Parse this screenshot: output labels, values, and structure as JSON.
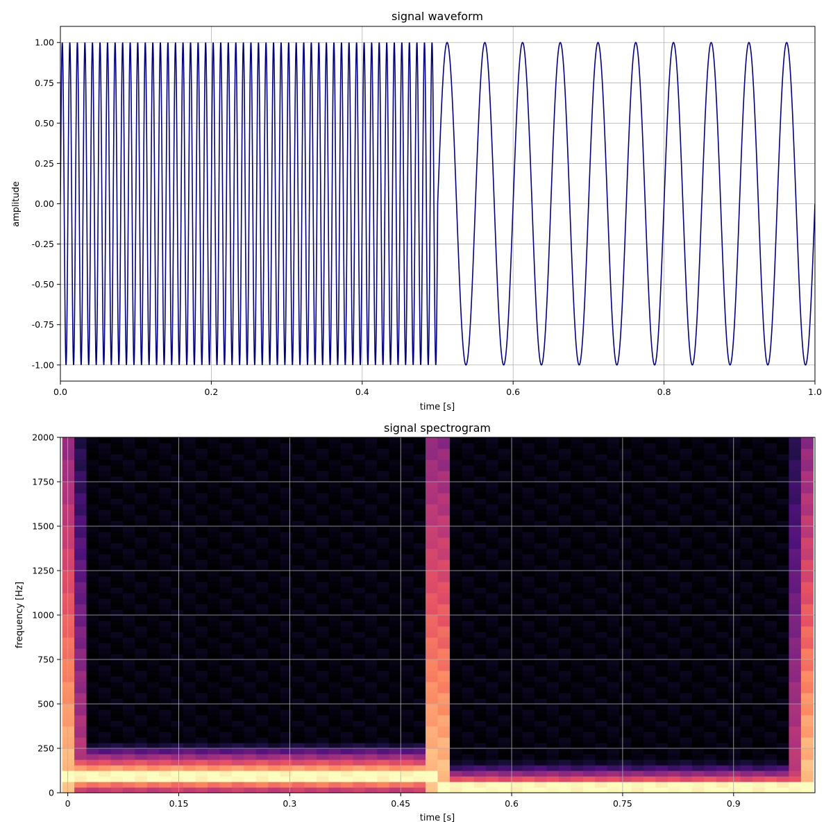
{
  "chart_data": [
    {
      "type": "line",
      "title": "signal waveform",
      "xlabel": "time [s]",
      "ylabel": "amplitude",
      "xlim": [
        0,
        1.0
      ],
      "ylim": [
        -1.1,
        1.1
      ],
      "xticks": [
        "0.0",
        "0.2",
        "0.4",
        "0.6",
        "0.8",
        "1.0"
      ],
      "yticks": [
        "-1.00",
        "-0.75",
        "-0.50",
        "-0.25",
        "0.00",
        "0.25",
        "0.50",
        "0.75",
        "1.00"
      ],
      "grid": true,
      "line_color": "#000080",
      "segments": [
        {
          "t_start": 0.0,
          "t_end": 0.5,
          "frequency_hz": 100,
          "amplitude": 1.0
        },
        {
          "t_start": 0.5,
          "t_end": 1.0,
          "frequency_hz": 20,
          "amplitude": 1.0
        }
      ]
    },
    {
      "type": "heatmap",
      "title": "signal spectrogram",
      "xlabel": "time [s]",
      "ylabel": "frequency [Hz]",
      "xlim": [
        -0.01,
        1.01
      ],
      "ylim": [
        0,
        2000
      ],
      "xticks": [
        "0",
        "0.15",
        "0.3",
        "0.45",
        "0.6",
        "0.75",
        "0.9"
      ],
      "yticks": [
        "0",
        "250",
        "500",
        "750",
        "1000",
        "1250",
        "1500",
        "1750",
        "2000"
      ],
      "grid": true,
      "colormap": "magma",
      "dominant_bands": [
        {
          "t_start": 0.0,
          "t_end": 0.5,
          "frequency_hz": 100
        },
        {
          "t_start": 0.5,
          "t_end": 1.0,
          "frequency_hz": 20
        }
      ]
    }
  ]
}
